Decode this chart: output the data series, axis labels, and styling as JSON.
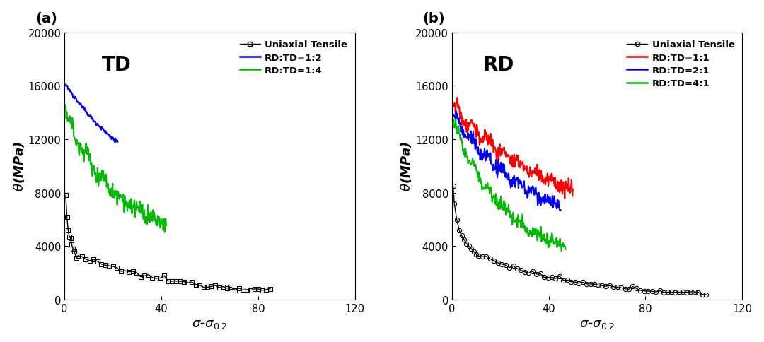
{
  "panel_a": {
    "label": "(a)",
    "title": "TD",
    "xlabel_parts": [
      "$\\sigma$",
      "-",
      "$\\sigma_{0.2}$"
    ],
    "ylabel": "$\\theta$(MPa)",
    "xlim": [
      0,
      120
    ],
    "ylim": [
      0,
      20000
    ],
    "xticks": [
      0,
      40,
      80,
      120
    ],
    "yticks": [
      0,
      4000,
      8000,
      12000,
      16000,
      20000
    ],
    "legend_labels": [
      "Uniaxial Tensile",
      "RD:TD=1:2",
      "RD:TD=1:4"
    ],
    "legend_colors": [
      "#000000",
      "#0000FF",
      "#00BB00"
    ],
    "legend_markers": [
      "s",
      null,
      null
    ]
  },
  "panel_b": {
    "label": "(b)",
    "title": "RD",
    "xlabel_parts": [
      "$\\sigma$",
      "-",
      "$\\sigma_{0.2}$"
    ],
    "ylabel": "$\\theta$(MPa)",
    "xlim": [
      0,
      120
    ],
    "ylim": [
      0,
      20000
    ],
    "xticks": [
      0,
      40,
      80,
      120
    ],
    "yticks": [
      0,
      4000,
      8000,
      12000,
      16000,
      20000
    ],
    "legend_labels": [
      "Uniaxial Tensile",
      "RD:TD=1:1",
      "RD:TD=2:1",
      "RD:TD=4:1"
    ],
    "legend_colors": [
      "#000000",
      "#FF0000",
      "#0000FF",
      "#00BB00"
    ],
    "legend_markers": [
      "o",
      null,
      null,
      null
    ]
  },
  "background_color": "#FFFFFF",
  "figure_width": 10.8,
  "figure_height": 4.85
}
